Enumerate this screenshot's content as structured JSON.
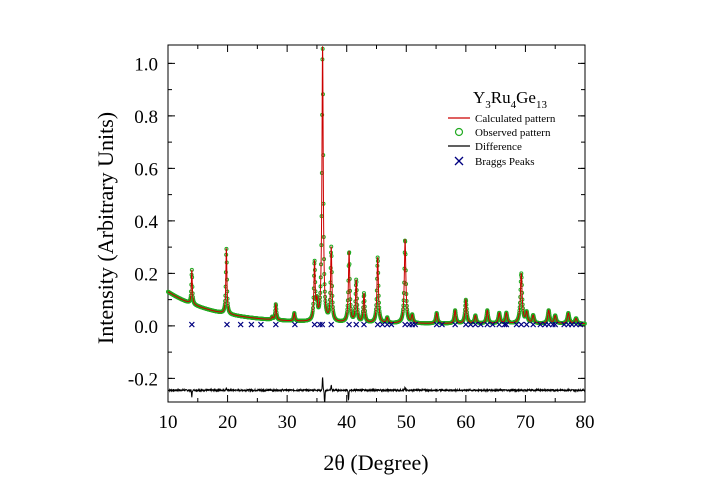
{
  "chart_data": {
    "type": "line",
    "title": "Y3Ru4Ge13",
    "title_parts": {
      "y": "Y",
      "y_sub": "3",
      "ru": "Ru",
      "ru_sub": "4",
      "ge": "Ge",
      "ge_sub": "13"
    },
    "xlabel": "2θ (Degree)",
    "ylabel": "Intensity (Arbitrary Units)",
    "xlim": [
      10,
      80
    ],
    "ylim": [
      -0.29,
      1.07
    ],
    "xticks": [
      10,
      20,
      30,
      40,
      50,
      60,
      70,
      80
    ],
    "xtick_labels": [
      "10",
      "20",
      "30",
      "40",
      "50",
      "60",
      "70",
      "80"
    ],
    "yticks": [
      -0.2,
      0.0,
      0.2,
      0.4,
      0.6,
      0.8,
      1.0
    ],
    "ytick_labels": [
      "-0.2",
      "0.0",
      "0.2",
      "0.4",
      "0.6",
      "0.8",
      "1.0"
    ],
    "legend": {
      "position": "top-right",
      "entries": [
        {
          "name": "Calculated pattern",
          "marker": "line",
          "color": "#cc0000"
        },
        {
          "name": "Observed pattern",
          "marker": "circle",
          "color": "#22aa22"
        },
        {
          "name": "Difference",
          "marker": "line",
          "color": "#000000"
        },
        {
          "name": "Braggs Peaks",
          "marker": "x",
          "color": "#000080"
        }
      ]
    },
    "background": {
      "start": [
        10,
        0.13
      ],
      "decay": 0.48,
      "floor": 0.008,
      "end": [
        80,
        0.008
      ]
    },
    "peaks": [
      [
        14.0,
        0.13
      ],
      [
        19.8,
        0.25
      ],
      [
        27.5,
        0.01
      ],
      [
        28.1,
        0.06
      ],
      [
        31.2,
        0.03
      ],
      [
        34.6,
        0.22
      ],
      [
        35.0,
        0.06
      ],
      [
        35.95,
        1.05
      ],
      [
        37.4,
        0.28
      ],
      [
        40.4,
        0.27
      ],
      [
        41.6,
        0.16
      ],
      [
        42.9,
        0.11
      ],
      [
        45.2,
        0.25
      ],
      [
        46.8,
        0.02
      ],
      [
        49.8,
        0.32
      ],
      [
        51.0,
        0.03
      ],
      [
        55.1,
        0.04
      ],
      [
        58.2,
        0.05
      ],
      [
        60.0,
        0.09
      ],
      [
        61.6,
        0.03
      ],
      [
        63.6,
        0.05
      ],
      [
        65.6,
        0.04
      ],
      [
        66.8,
        0.04
      ],
      [
        69.3,
        0.19
      ],
      [
        70.2,
        0.04
      ],
      [
        71.3,
        0.03
      ],
      [
        73.9,
        0.05
      ],
      [
        75.0,
        0.03
      ],
      [
        77.2,
        0.04
      ],
      [
        78.5,
        0.02
      ]
    ],
    "bragg_positions": [
      14.0,
      19.9,
      22.2,
      24.0,
      25.6,
      28.1,
      31.3,
      34.6,
      35.5,
      35.9,
      37.4,
      40.4,
      41.6,
      42.9,
      45.2,
      46.0,
      46.8,
      47.5,
      49.8,
      50.5,
      51.0,
      51.5,
      55.1,
      56.0,
      58.2,
      60.0,
      60.8,
      61.6,
      62.5,
      63.6,
      64.5,
      65.6,
      66.5,
      66.8,
      68.5,
      69.3,
      70.2,
      71.3,
      72.5,
      73.3,
      73.9,
      74.6,
      75.0,
      76.5,
      77.2,
      77.8,
      78.5,
      79.2
    ],
    "bragg_level": 0.005,
    "difference_offset": -0.245,
    "difference_features": [
      [
        14.0,
        -0.025
      ],
      [
        19.8,
        0.01
      ],
      [
        35.95,
        0.05
      ],
      [
        36.3,
        -0.06
      ],
      [
        37.4,
        0.02
      ],
      [
        40.3,
        -0.04
      ],
      [
        49.8,
        0.01
      ]
    ]
  }
}
